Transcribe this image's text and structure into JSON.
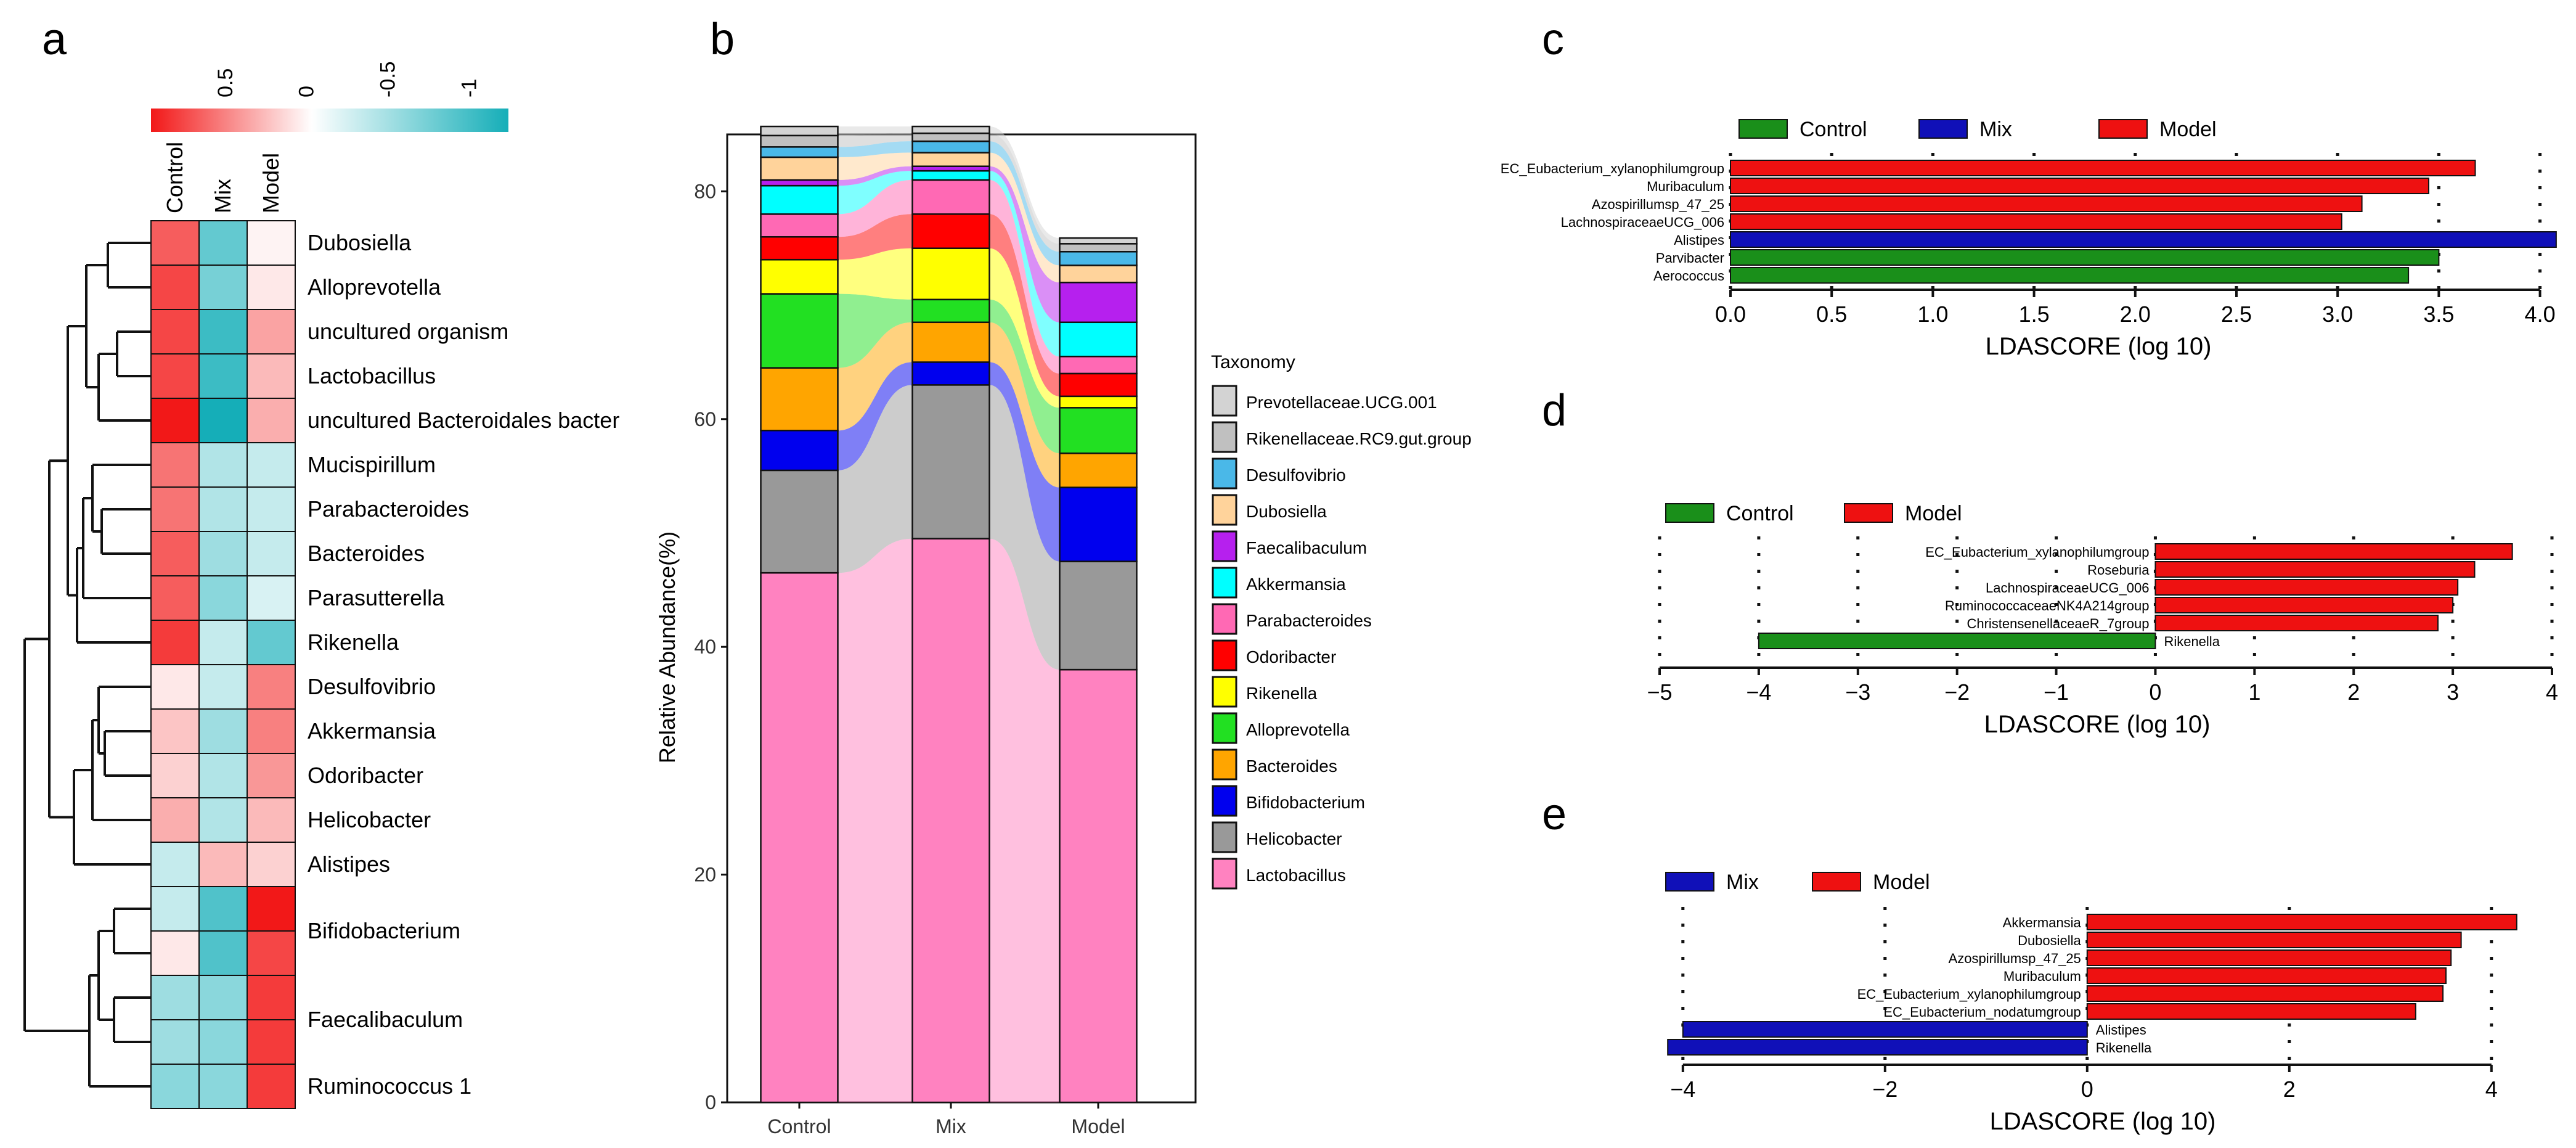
{
  "panel_labels": [
    "a",
    "b",
    "c",
    "d",
    "e"
  ],
  "chart_data": [
    {
      "type": "heatmap",
      "panel": "a",
      "columns": [
        "Control",
        "Mix",
        "Model"
      ],
      "colorbar": {
        "ticks": [
          "0.5",
          "0",
          "-0.5",
          "-1"
        ],
        "tick_values": [
          0.5,
          0,
          -0.5,
          -1
        ],
        "range": [
          1,
          -1.2
        ],
        "high_color": "#f21818",
        "mid_color": "#ffffff",
        "low_color": "#15aeb8"
      },
      "rows": [
        {
          "label": "Dubosiella",
          "values": [
            0.7,
            -0.8,
            0.05
          ]
        },
        {
          "label": "Alloprevotella",
          "values": [
            0.8,
            -0.7,
            0.1
          ]
        },
        {
          "label": "uncultured organism",
          "values": [
            0.8,
            -1.0,
            0.4
          ]
        },
        {
          "label": "Lactobacillus",
          "values": [
            0.8,
            -1.0,
            0.3
          ]
        },
        {
          "label": "uncultured Bacteroidales bacter",
          "values": [
            1.0,
            -1.2,
            0.35
          ]
        },
        {
          "label": "Mucispirillum",
          "values": [
            0.6,
            -0.4,
            -0.3
          ]
        },
        {
          "label": "Parabacteroides",
          "values": [
            0.6,
            -0.4,
            -0.3
          ]
        },
        {
          "label": "Bacteroides",
          "values": [
            0.7,
            -0.5,
            -0.3
          ]
        },
        {
          "label": "Parasutterella",
          "values": [
            0.7,
            -0.6,
            -0.2
          ]
        },
        {
          "label": "Rikenella",
          "values": [
            0.85,
            -0.3,
            -0.8
          ]
        },
        {
          "label": "Desulfovibrio",
          "values": [
            0.1,
            -0.3,
            0.55
          ]
        },
        {
          "label": "Akkermansia",
          "values": [
            0.25,
            -0.5,
            0.55
          ]
        },
        {
          "label": "Odoribacter",
          "values": [
            0.2,
            -0.4,
            0.45
          ]
        },
        {
          "label": "Helicobacter",
          "values": [
            0.35,
            -0.4,
            0.3
          ]
        },
        {
          "label": "Alistipes",
          "values": [
            -0.3,
            0.3,
            0.2
          ]
        },
        {
          "label": "Bifidobacterium",
          "values": [
            -0.3,
            -0.9,
            1.0
          ],
          "label_shown": false
        },
        {
          "label": "Bifidobacterium",
          "values": [
            0.1,
            -0.9,
            0.8
          ]
        },
        {
          "label": "Faecalibaculum",
          "values": [
            -0.5,
            -0.6,
            0.85
          ],
          "label_shown": false
        },
        {
          "label": "Faecalibaculum",
          "values": [
            -0.5,
            -0.6,
            0.85
          ]
        },
        {
          "label": "Ruminococcus 1",
          "values": [
            -0.6,
            -0.6,
            0.85
          ]
        }
      ]
    },
    {
      "type": "bar",
      "panel": "b",
      "stacked": true,
      "categories": [
        "Control",
        "Mix",
        "Model"
      ],
      "ylabel": "Relative Abundance(%)",
      "ylim": [
        0,
        85
      ],
      "yticks": [
        0,
        20,
        40,
        60,
        80
      ],
      "legend_title": "Taxonomy",
      "series": [
        {
          "name": "Lactobacillus",
          "color": "#ff82c0",
          "values": [
            46.5,
            49.5,
            38.0
          ]
        },
        {
          "name": "Helicobacter",
          "color": "#999999",
          "values": [
            9.0,
            13.5,
            9.5
          ]
        },
        {
          "name": "Bifidobacterium",
          "color": "#0000ee",
          "values": [
            3.5,
            2.0,
            6.5
          ]
        },
        {
          "name": "Bacteroides",
          "color": "#ffa500",
          "values": [
            5.5,
            3.5,
            3.0
          ]
        },
        {
          "name": "Alloprevotella",
          "color": "#22e022",
          "values": [
            6.5,
            2.0,
            4.0
          ]
        },
        {
          "name": "Rikenella",
          "color": "#ffff00",
          "values": [
            3.0,
            4.5,
            1.0
          ]
        },
        {
          "name": "Odoribacter",
          "color": "#ff0000",
          "values": [
            2.0,
            3.0,
            2.0
          ]
        },
        {
          "name": "Parabacteroides",
          "color": "#ff69b4",
          "values": [
            2.0,
            3.0,
            1.5
          ]
        },
        {
          "name": "Akkermansia",
          "color": "#00ffff",
          "values": [
            2.5,
            0.8,
            3.0
          ]
        },
        {
          "name": "Faecalibaculum",
          "color": "#b620ee",
          "values": [
            0.5,
            0.4,
            3.5
          ]
        },
        {
          "name": "Dubosiella",
          "color": "#ffd39b",
          "values": [
            2.0,
            1.2,
            1.5
          ]
        },
        {
          "name": "Desulfovibrio",
          "color": "#4ab8e8",
          "values": [
            0.9,
            1.0,
            1.2
          ]
        },
        {
          "name": "Rikenellaceae.RC9.gut.group",
          "color": "#c0c0c0",
          "values": [
            1.0,
            0.7,
            0.7
          ]
        },
        {
          "name": "Prevotellaceae.UCG.001",
          "color": "#d3d3d3",
          "values": [
            0.8,
            0.6,
            0.5
          ]
        }
      ]
    },
    {
      "type": "bar",
      "panel": "c",
      "orientation": "horizontal",
      "xlabel": "LDASCORE (log 10)",
      "xlim": [
        0,
        4.05
      ],
      "xticks": [
        "0.0",
        "0.5",
        "1.0",
        "1.5",
        "2.0",
        "2.5",
        "3.0",
        "3.5",
        "4.0"
      ],
      "tick_values": [
        0,
        0.5,
        1.0,
        1.5,
        2.0,
        2.5,
        3.0,
        3.5,
        4.0
      ],
      "legend": [
        {
          "name": "Control",
          "color": "#1a8f1a"
        },
        {
          "name": "Mix",
          "color": "#1010b8"
        },
        {
          "name": "Model",
          "color": "#ee1111"
        }
      ],
      "bars": [
        {
          "label": "EC_Eubacterium_xylanophilumgroup",
          "value": 3.68,
          "group": "Model"
        },
        {
          "label": "Muribaculum",
          "value": 3.45,
          "group": "Model"
        },
        {
          "label": "Azospirillumsp_47_25",
          "value": 3.12,
          "group": "Model"
        },
        {
          "label": "LachnospiraceaeUCG_006",
          "value": 3.02,
          "group": "Model"
        },
        {
          "label": "Alistipes",
          "value": 4.08,
          "group": "Mix"
        },
        {
          "label": "Parvibacter",
          "value": 3.5,
          "group": "Control"
        },
        {
          "label": "Aerococcus",
          "value": 3.35,
          "group": "Control"
        }
      ]
    },
    {
      "type": "bar",
      "panel": "d",
      "orientation": "horizontal",
      "xlabel": "LDASCORE (log 10)",
      "xlim": [
        -5,
        4
      ],
      "xticks": [
        "−5",
        "−4",
        "−3",
        "−2",
        "−1",
        "0",
        "1",
        "2",
        "3",
        "4"
      ],
      "tick_values": [
        -5,
        -4,
        -3,
        -2,
        -1,
        0,
        1,
        2,
        3,
        4
      ],
      "legend": [
        {
          "name": "Control",
          "color": "#1a8f1a"
        },
        {
          "name": "Model",
          "color": "#ee1111"
        }
      ],
      "bars": [
        {
          "label": "EC_Eubacterium_xylanophilumgroup",
          "value": 3.6,
          "group": "Model"
        },
        {
          "label": "Roseburia",
          "value": 3.22,
          "group": "Model"
        },
        {
          "label": "LachnospiraceaeUCG_006",
          "value": 3.05,
          "group": "Model"
        },
        {
          "label": "RuminococcaceaeNK4A214group",
          "value": 3.0,
          "group": "Model"
        },
        {
          "label": "ChristensenellaceaeR_7group",
          "value": 2.85,
          "group": "Model"
        },
        {
          "label": "Rikenella",
          "value": -4.0,
          "group": "Control"
        }
      ]
    },
    {
      "type": "bar",
      "panel": "e",
      "orientation": "horizontal",
      "xlabel": "LDASCORE (log 10)",
      "xlim": [
        -4.2,
        4.3
      ],
      "xticks": [
        "−4",
        "−2",
        "0",
        "2",
        "4"
      ],
      "tick_values": [
        -4,
        -2,
        0,
        2,
        4
      ],
      "legend": [
        {
          "name": "Mix",
          "color": "#1010b8"
        },
        {
          "name": "Model",
          "color": "#ee1111"
        }
      ],
      "bars": [
        {
          "label": "Akkermansia",
          "value": 4.25,
          "group": "Model"
        },
        {
          "label": "Dubosiella",
          "value": 3.7,
          "group": "Model"
        },
        {
          "label": "Azospirillumsp_47_25",
          "value": 3.6,
          "group": "Model"
        },
        {
          "label": "Muribaculum",
          "value": 3.55,
          "group": "Model"
        },
        {
          "label": "EC_Eubacterium_xylanophilumgroup",
          "value": 3.52,
          "group": "Model"
        },
        {
          "label": "EC_Eubacterium_nodatumgroup",
          "value": 3.25,
          "group": "Model"
        },
        {
          "label": "Alistipes",
          "value": -4.0,
          "group": "Mix"
        },
        {
          "label": "Rikenella",
          "value": -4.15,
          "group": "Mix"
        }
      ]
    }
  ]
}
